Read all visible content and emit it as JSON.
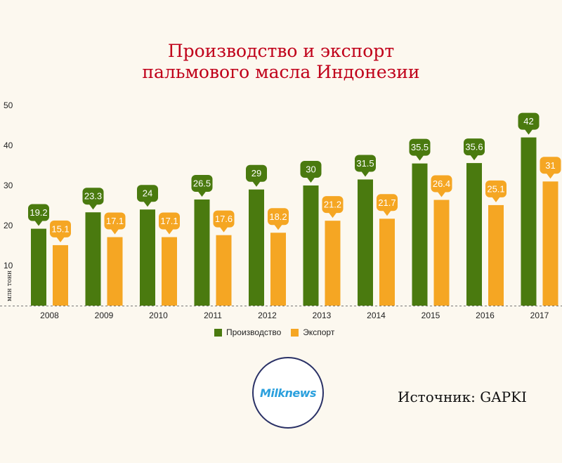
{
  "title": {
    "line1": "Производство и экспорт",
    "line2": "пальмового масла Индонезии"
  },
  "colors": {
    "production": "#4a7a0f",
    "export": "#f5a623",
    "background": "#fcf8ef",
    "title": "#c0001a"
  },
  "chart_data": {
    "type": "bar",
    "categories": [
      "2008",
      "2009",
      "2010",
      "2011",
      "2012",
      "2013",
      "2014",
      "2015",
      "2016",
      "2017"
    ],
    "series": [
      {
        "name": "Производство",
        "values": [
          19.2,
          23.3,
          24,
          26.5,
          29,
          30,
          31.5,
          35.5,
          35.6,
          42
        ]
      },
      {
        "name": "Экспорт",
        "values": [
          15.1,
          17.1,
          17.1,
          17.6,
          18.2,
          21.2,
          21.7,
          26.4,
          25.1,
          31
        ]
      }
    ],
    "value_labels": {
      "production": [
        "19.2",
        "23.3",
        "24",
        "26.5",
        "29",
        "30",
        "31.5",
        "35.5",
        "35.6",
        "42"
      ],
      "export": [
        "15.1",
        "17.1",
        "17.1",
        "17.6",
        "18.2",
        "21.2",
        "21.7",
        "26.4",
        "25.1",
        "31"
      ]
    },
    "ylabel": "млн тонн",
    "ylim": [
      0,
      50
    ],
    "yticks": [
      "10",
      "20",
      "30",
      "40",
      "50"
    ],
    "grid": false,
    "legend": "bottom-center"
  },
  "legend": {
    "production": "Производство",
    "export": "Экспорт"
  },
  "logo_text": "Milknews",
  "source": "Источник: GAPKI"
}
